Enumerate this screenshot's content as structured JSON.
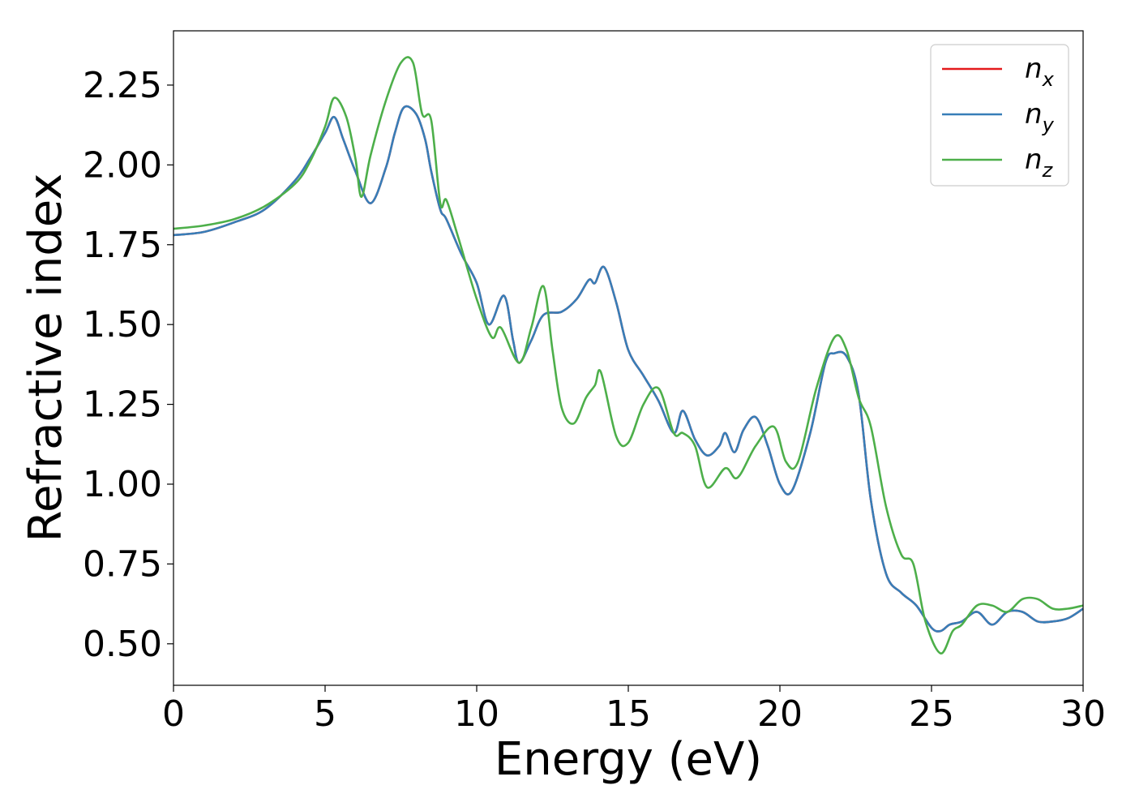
{
  "chart_data": {
    "type": "line",
    "xlabel": "Energy (eV)",
    "ylabel": "Refractive index",
    "xlim": [
      0,
      30
    ],
    "ylim": [
      0.37,
      2.42
    ],
    "xticks": [
      "0",
      "5",
      "10",
      "15",
      "20",
      "25",
      "30"
    ],
    "yticks": [
      "0.50",
      "0.75",
      "1.00",
      "1.25",
      "1.50",
      "1.75",
      "2.00",
      "2.25"
    ],
    "grid": false,
    "legend_position": "top-right",
    "series": [
      {
        "name": "n",
        "sub": "x",
        "color": "#e41a1c",
        "x": [
          0,
          1,
          2,
          3,
          4,
          4.5,
          5,
          5.3,
          5.6,
          6,
          6.5,
          7,
          7.3,
          7.6,
          8,
          8.3,
          8.5,
          8.8,
          9,
          9.5,
          10,
          10.4,
          10.9,
          11.2,
          11.4,
          11.8,
          12.2,
          12.8,
          13.3,
          13.7,
          13.9,
          14.2,
          14.6,
          15,
          15.5,
          16,
          16.5,
          16.8,
          17.2,
          17.6,
          18,
          18.2,
          18.5,
          18.8,
          19.2,
          19.6,
          20,
          20.4,
          21,
          21.5,
          21.8,
          22.2,
          22.6,
          23,
          23.5,
          24,
          24.5,
          25,
          25.3,
          25.6,
          26,
          26.5,
          27,
          27.5,
          28,
          28.5,
          29,
          29.5,
          30
        ],
        "y": [
          1.78,
          1.79,
          1.82,
          1.86,
          1.95,
          2.02,
          2.1,
          2.15,
          2.08,
          1.98,
          1.88,
          1.99,
          2.1,
          2.18,
          2.16,
          2.08,
          1.98,
          1.86,
          1.83,
          1.72,
          1.63,
          1.5,
          1.59,
          1.45,
          1.38,
          1.45,
          1.53,
          1.54,
          1.58,
          1.64,
          1.63,
          1.68,
          1.57,
          1.42,
          1.34,
          1.26,
          1.16,
          1.23,
          1.14,
          1.09,
          1.12,
          1.16,
          1.1,
          1.17,
          1.21,
          1.12,
          1.0,
          0.98,
          1.16,
          1.38,
          1.41,
          1.4,
          1.28,
          0.95,
          0.72,
          0.66,
          0.62,
          0.55,
          0.54,
          0.56,
          0.57,
          0.6,
          0.56,
          0.6,
          0.6,
          0.57,
          0.57,
          0.58,
          0.61
        ]
      },
      {
        "name": "n",
        "sub": "y",
        "color": "#377eb8",
        "x": [
          0,
          1,
          2,
          3,
          4,
          4.5,
          5,
          5.3,
          5.6,
          6,
          6.5,
          7,
          7.3,
          7.6,
          8,
          8.3,
          8.5,
          8.8,
          9,
          9.5,
          10,
          10.4,
          10.9,
          11.2,
          11.4,
          11.8,
          12.2,
          12.8,
          13.3,
          13.7,
          13.9,
          14.2,
          14.6,
          15,
          15.5,
          16,
          16.5,
          16.8,
          17.2,
          17.6,
          18,
          18.2,
          18.5,
          18.8,
          19.2,
          19.6,
          20,
          20.4,
          21,
          21.5,
          21.8,
          22.2,
          22.6,
          23,
          23.5,
          24,
          24.5,
          25,
          25.3,
          25.6,
          26,
          26.5,
          27,
          27.5,
          28,
          28.5,
          29,
          29.5,
          30
        ],
        "y": [
          1.78,
          1.79,
          1.82,
          1.86,
          1.95,
          2.02,
          2.1,
          2.15,
          2.08,
          1.98,
          1.88,
          1.99,
          2.1,
          2.18,
          2.16,
          2.08,
          1.98,
          1.86,
          1.83,
          1.72,
          1.63,
          1.5,
          1.59,
          1.45,
          1.38,
          1.45,
          1.53,
          1.54,
          1.58,
          1.64,
          1.63,
          1.68,
          1.57,
          1.42,
          1.34,
          1.26,
          1.16,
          1.23,
          1.14,
          1.09,
          1.12,
          1.16,
          1.1,
          1.17,
          1.21,
          1.12,
          1.0,
          0.98,
          1.16,
          1.38,
          1.41,
          1.4,
          1.28,
          0.95,
          0.72,
          0.66,
          0.62,
          0.55,
          0.54,
          0.56,
          0.57,
          0.6,
          0.56,
          0.6,
          0.6,
          0.57,
          0.57,
          0.58,
          0.61
        ]
      },
      {
        "name": "n",
        "sub": "z",
        "color": "#4daf4a",
        "x": [
          0,
          1,
          2,
          3,
          4,
          4.5,
          5,
          5.3,
          5.7,
          6,
          6.2,
          6.5,
          7,
          7.5,
          7.9,
          8.2,
          8.5,
          8.8,
          9,
          9.4,
          10,
          10.5,
          10.8,
          11.4,
          11.8,
          12.2,
          12.5,
          12.8,
          13.2,
          13.6,
          13.9,
          14.1,
          14.6,
          15,
          15.5,
          16,
          16.5,
          16.8,
          17.2,
          17.6,
          18.2,
          18.6,
          19.2,
          19.8,
          20.2,
          20.6,
          21.2,
          21.8,
          22.2,
          22.6,
          23,
          23.5,
          24,
          24.4,
          24.8,
          25.3,
          25.7,
          26,
          26.5,
          27,
          27.5,
          28,
          28.5,
          29,
          29.5,
          30
        ],
        "y": [
          1.8,
          1.81,
          1.83,
          1.87,
          1.94,
          2.01,
          2.12,
          2.21,
          2.15,
          2.02,
          1.9,
          2.03,
          2.2,
          2.32,
          2.32,
          2.16,
          2.14,
          1.88,
          1.89,
          1.77,
          1.58,
          1.46,
          1.49,
          1.38,
          1.49,
          1.62,
          1.42,
          1.24,
          1.19,
          1.27,
          1.31,
          1.35,
          1.15,
          1.13,
          1.25,
          1.3,
          1.16,
          1.16,
          1.12,
          0.99,
          1.05,
          1.02,
          1.12,
          1.18,
          1.07,
          1.07,
          1.3,
          1.46,
          1.42,
          1.27,
          1.18,
          0.93,
          0.78,
          0.75,
          0.57,
          0.47,
          0.54,
          0.56,
          0.62,
          0.62,
          0.6,
          0.64,
          0.64,
          0.61,
          0.61,
          0.62
        ]
      }
    ]
  }
}
